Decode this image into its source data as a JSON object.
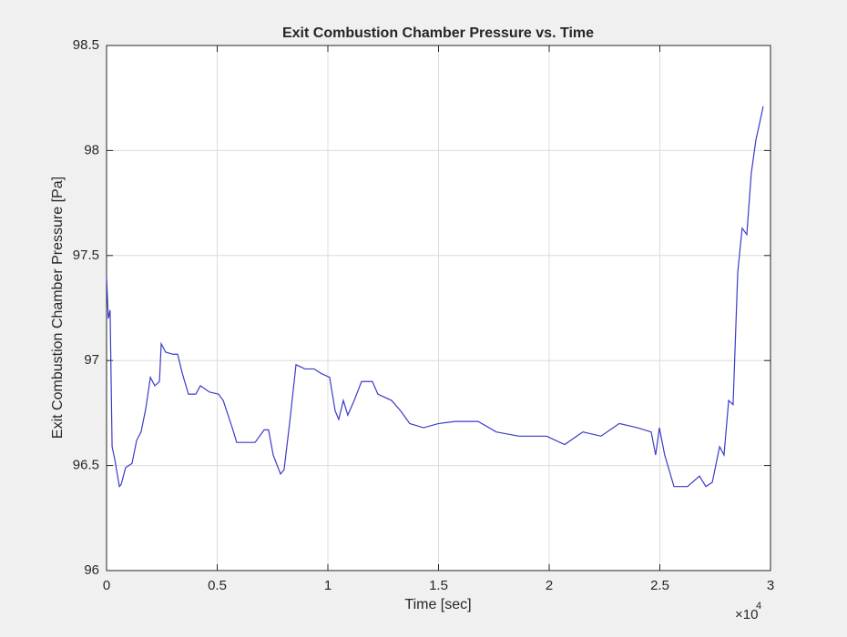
{
  "chart_data": {
    "type": "line",
    "title": "Exit Combustion Chamber Pressure vs. Time",
    "x_label": "Time [sec]",
    "y_label": "Exit Combustion Chamber Pressure [Pa]",
    "x_multiplier": "×10",
    "x_multiplier_exponent": "4",
    "color": "#3b3bc8",
    "grid": true,
    "xlim": [
      0,
      30000
    ],
    "xticks": [
      {
        "value": 0,
        "label": "0"
      },
      {
        "value": 5000,
        "label": "0.5"
      },
      {
        "value": 10000,
        "label": "1"
      },
      {
        "value": 15000,
        "label": "1.5"
      },
      {
        "value": 20000,
        "label": "2"
      },
      {
        "value": 25000,
        "label": "2.5"
      },
      {
        "value": 30000,
        "label": "3"
      }
    ],
    "ylim": [
      96,
      98.5
    ],
    "yticks": [
      96,
      96.5,
      97,
      97.5,
      98,
      98.5
    ],
    "x": [
      0,
      80,
      160,
      250,
      370,
      580,
      660,
      860,
      1150,
      1360,
      1560,
      1770,
      1980,
      2180,
      2390,
      2470,
      2670,
      3000,
      3210,
      3420,
      3700,
      4030,
      4240,
      4650,
      5060,
      5270,
      5680,
      5880,
      6300,
      6710,
      7120,
      7320,
      7530,
      7860,
      8020,
      8270,
      8560,
      8970,
      9380,
      9670,
      10080,
      10330,
      10490,
      10700,
      10900,
      11190,
      11520,
      12010,
      12260,
      12880,
      13290,
      13700,
      14320,
      15000,
      15760,
      16790,
      17610,
      18640,
      19880,
      20700,
      21520,
      22340,
      23170,
      23990,
      24610,
      24810,
      24980,
      25220,
      25640,
      26250,
      26790,
      27080,
      27370,
      27700,
      27900,
      28110,
      28310,
      28520,
      28720,
      28930,
      29130,
      29340,
      29550,
      29670
    ],
    "values": [
      97.4,
      97.2,
      97.24,
      96.59,
      96.53,
      96.4,
      96.41,
      96.49,
      96.51,
      96.62,
      96.66,
      96.77,
      96.92,
      96.88,
      96.9,
      97.08,
      97.04,
      97.03,
      97.03,
      96.94,
      96.84,
      96.84,
      96.88,
      96.85,
      96.84,
      96.81,
      96.68,
      96.61,
      96.61,
      96.61,
      96.67,
      96.67,
      96.55,
      96.46,
      96.48,
      96.7,
      96.98,
      96.96,
      96.96,
      96.94,
      96.92,
      96.76,
      96.72,
      96.81,
      96.74,
      96.81,
      96.9,
      96.9,
      96.84,
      96.81,
      96.76,
      96.7,
      96.68,
      96.7,
      96.71,
      96.71,
      96.66,
      96.64,
      96.64,
      96.6,
      96.66,
      96.64,
      96.7,
      96.68,
      96.66,
      96.55,
      96.68,
      96.55,
      96.4,
      96.4,
      96.45,
      96.4,
      96.42,
      96.59,
      96.55,
      96.81,
      96.79,
      97.42,
      97.63,
      97.6,
      97.89,
      98.05,
      98.15,
      98.21
    ]
  }
}
